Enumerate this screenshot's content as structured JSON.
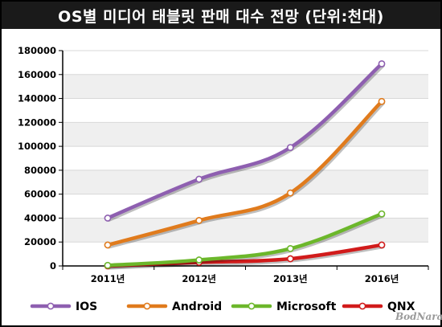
{
  "title": "OS별 미디어 태블릿 판매 대수 전망 (단위:천대)",
  "watermark": "BodNara",
  "chart_data": {
    "type": "line",
    "title": "OS별 미디어 태블릿 판매 대수 전망 (단위:천대)",
    "xlabel": "",
    "ylabel": "",
    "categories": [
      "2011년",
      "2012년",
      "2013년",
      "2016년"
    ],
    "ylim": [
      0,
      180000
    ],
    "yticks": [
      0,
      20000,
      40000,
      60000,
      80000,
      100000,
      120000,
      140000,
      160000,
      180000
    ],
    "grid": true,
    "legend": "bottom",
    "series": [
      {
        "name": "IOS",
        "color": "#8e5fb0",
        "values": [
          40000,
          72500,
          99000,
          169000
        ]
      },
      {
        "name": "Android",
        "color": "#e07b1d",
        "values": [
          17500,
          38000,
          61000,
          137500
        ]
      },
      {
        "name": "Microsoft",
        "color": "#6cb72b",
        "values": [
          500,
          5000,
          14500,
          43500
        ]
      },
      {
        "name": "QNX",
        "color": "#d11b1b",
        "values": [
          0,
          3000,
          6000,
          17500
        ]
      }
    ]
  }
}
